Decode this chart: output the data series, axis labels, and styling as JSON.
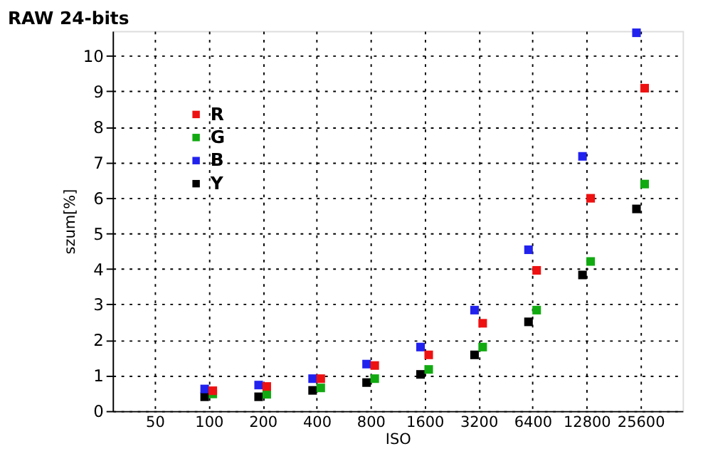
{
  "chart_data": {
    "type": "scatter",
    "title": "RAW 24-bits",
    "xlabel": "ISO",
    "ylabel": "szum[%]",
    "categories": [
      "50",
      "100",
      "200",
      "400",
      "800",
      "1600",
      "3200",
      "6400",
      "12800",
      "25600"
    ],
    "series": [
      {
        "name": "R",
        "color": "#ee1111",
        "values": [
          null,
          0.57,
          0.69,
          0.91,
          1.28,
          1.58,
          2.47,
          3.96,
          5.99,
          9.09
        ]
      },
      {
        "name": "G",
        "color": "#11aa11",
        "values": [
          null,
          0.48,
          0.47,
          0.65,
          0.91,
          1.17,
          1.8,
          2.84,
          4.21,
          6.39
        ]
      },
      {
        "name": "B",
        "color": "#2222ee",
        "values": [
          null,
          0.62,
          0.73,
          0.91,
          1.32,
          1.8,
          2.84,
          4.54,
          7.17,
          10.65
        ]
      },
      {
        "name": "Y",
        "color": "#000000",
        "values": [
          null,
          0.4,
          0.4,
          0.58,
          0.8,
          1.03,
          1.58,
          2.51,
          3.83,
          5.69
        ]
      }
    ],
    "ylim": [
      0,
      10.7
    ],
    "yticks": [
      0,
      1,
      2,
      3,
      4,
      5,
      6,
      7,
      8,
      9,
      10
    ],
    "grid": true,
    "legend": "top left",
    "marker": "square"
  }
}
